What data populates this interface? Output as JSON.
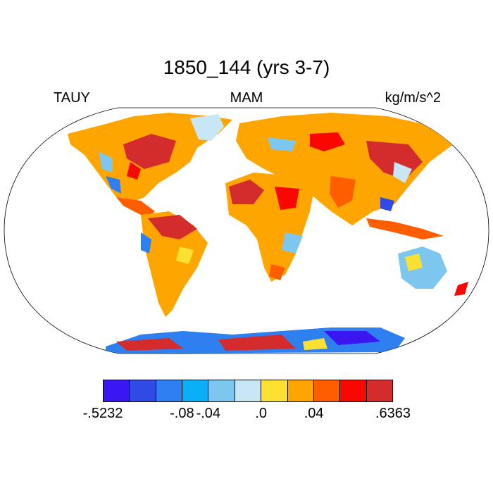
{
  "title": "1850_144 (yrs 3-7)",
  "left_label": "TAUY",
  "center_label": "MAM",
  "right_label": "kg/m/s^2",
  "legend": {
    "colors": [
      "#3a16f0",
      "#2f4be3",
      "#2e7ff0",
      "#0aaff7",
      "#7cc6ef",
      "#c8e6f6",
      "#fde132",
      "#ffa500",
      "#ff5e00",
      "#f80800",
      "#d42c2c"
    ],
    "tick_labels": [
      {
        "text": "-.5232",
        "boundary": 0
      },
      {
        "text": "-.08",
        "boundary": 3
      },
      {
        "text": "-.04",
        "boundary": 4
      },
      {
        "text": ".0",
        "boundary": 6
      },
      {
        "text": ".04",
        "boundary": 8
      },
      {
        "text": ".6363",
        "boundary": 11
      }
    ]
  }
}
